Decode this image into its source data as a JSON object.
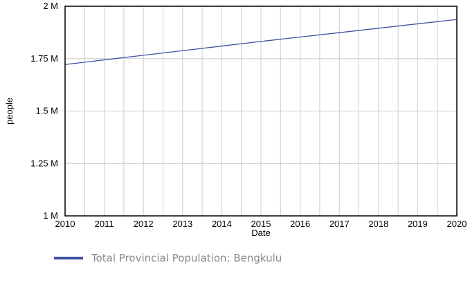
{
  "colors": {
    "series": "#3f51a3",
    "grid": "#cccccc",
    "axis": "#000000",
    "legend_text": "#8a8a8a"
  },
  "chart_data": {
    "type": "line",
    "title": "",
    "xlabel": "Date",
    "ylabel": "people",
    "x_ticks": [
      "2010",
      "2011",
      "2012",
      "2013",
      "2014",
      "2015",
      "2016",
      "2017",
      "2018",
      "2019",
      "2020"
    ],
    "y_ticks": [
      {
        "value": 1000000,
        "label": "1 M"
      },
      {
        "value": 1250000,
        "label": "1.25 M"
      },
      {
        "value": 1500000,
        "label": "1.5 M"
      },
      {
        "value": 1750000,
        "label": "1.75 M"
      },
      {
        "value": 2000000,
        "label": "2 M"
      }
    ],
    "xlim": [
      2010,
      2020
    ],
    "ylim": [
      1000000,
      2000000
    ],
    "x_minor_step": 0.5,
    "grid": true,
    "legend_position": "bottom-left",
    "series": [
      {
        "name": "Total Provincial Population: Bengkulu",
        "color": "#3f51a3",
        "x": [
          2010,
          2011,
          2012,
          2013,
          2014,
          2015,
          2016,
          2017,
          2018,
          2019,
          2020
        ],
        "y": [
          1722000,
          1744000,
          1766000,
          1788000,
          1810000,
          1832000,
          1853000,
          1874000,
          1895000,
          1916000,
          1937000
        ]
      }
    ]
  }
}
